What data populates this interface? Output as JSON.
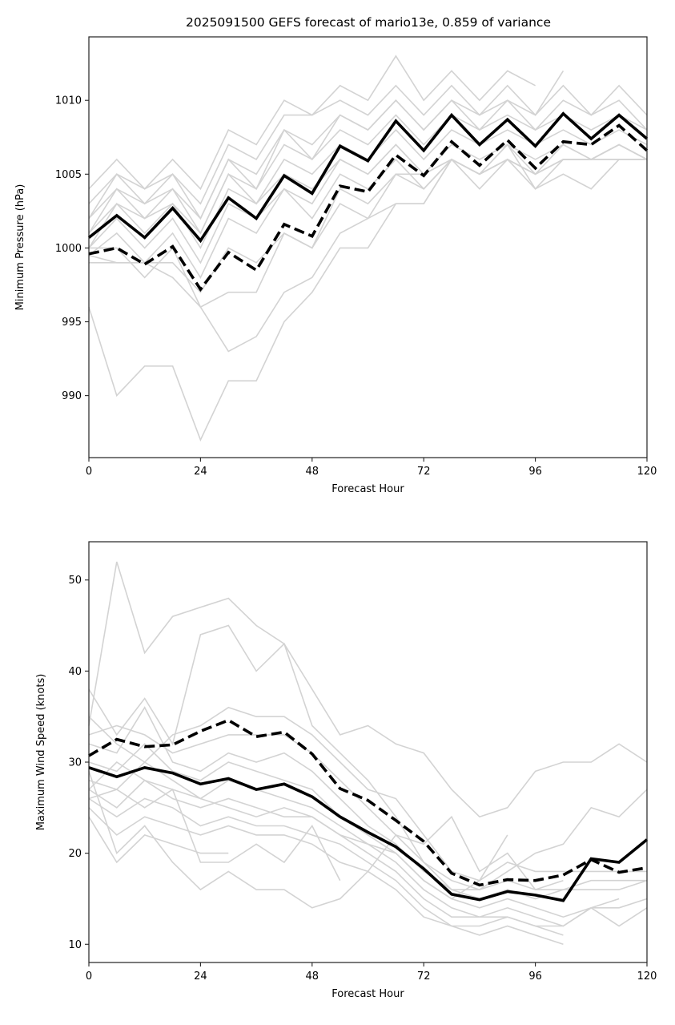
{
  "figure": {
    "title": "2025091500 GEFS forecast of mario13e, 0.859 of variance"
  },
  "colors": {
    "ensemble_member": "#d3d3d3",
    "highlight": "#000000"
  },
  "chart_data": [
    {
      "type": "line",
      "title": "2025091500 GEFS forecast of mario13e, 0.859 of variance",
      "xlabel": "Forecast Hour",
      "ylabel": "Minimum Pressure (hPa)",
      "xlim": [
        0,
        120
      ],
      "ylim": [
        985.8,
        1014.3
      ],
      "xticks": [
        0,
        24,
        48,
        72,
        96,
        120
      ],
      "yticks": [
        990,
        995,
        1000,
        1005,
        1010
      ],
      "grid": false,
      "legend": "none",
      "x": [
        0,
        6,
        12,
        18,
        24,
        30,
        36,
        42,
        48,
        54,
        60,
        66,
        72,
        78,
        84,
        90,
        96,
        102,
        108,
        114,
        120
      ],
      "series": [
        {
          "name": "solid-black",
          "style": "solid",
          "values": [
            1000.7,
            1002.2,
            1000.7,
            1002.7,
            1000.5,
            1003.4,
            1002.0,
            1004.9,
            1003.7,
            1006.9,
            1005.9,
            1008.6,
            1006.6,
            1009.0,
            1007.0,
            1008.7,
            1006.9,
            1009.1,
            1007.4,
            1009.0,
            1007.4
          ]
        },
        {
          "name": "dashed-black",
          "style": "dashed",
          "values": [
            999.6,
            1000.0,
            998.9,
            1000.1,
            997.2,
            999.7,
            998.5,
            1001.6,
            1000.8,
            1004.2,
            1003.8,
            1006.3,
            1004.9,
            1007.2,
            1005.6,
            1007.3,
            1005.4,
            1007.2,
            1007.0,
            1008.3,
            1006.6
          ]
        },
        {
          "name": "member-01",
          "style": "gray",
          "values": [
            1004,
            1006,
            1004,
            1006,
            1004,
            1008,
            1007,
            1010,
            1009,
            1011,
            1010,
            1013,
            1010,
            1012,
            1010,
            1012,
            1011,
            null,
            null,
            null,
            null
          ]
        },
        {
          "name": "member-02",
          "style": "gray",
          "values": [
            1003,
            1005,
            1004,
            1005,
            1003,
            1007,
            1006,
            1009,
            1009,
            1010,
            1009,
            1011,
            1009,
            1011,
            1009,
            1011,
            1009,
            1012,
            null,
            null,
            null
          ]
        },
        {
          "name": "member-03",
          "style": "gray",
          "values": [
            1002,
            1005,
            1003,
            1005,
            1002,
            1006,
            1005,
            1008,
            1007,
            1009,
            1008,
            1010,
            1008,
            1010,
            1009,
            1010,
            1009,
            1011,
            1009,
            1011,
            1009
          ]
        },
        {
          "name": "member-04",
          "style": "gray",
          "values": [
            1002,
            1004,
            1003,
            1004,
            1002,
            1006,
            1004,
            1008,
            1006,
            1009,
            1008,
            1010,
            1008,
            1010,
            1008,
            1010,
            1008,
            1010,
            1009,
            1010,
            1008
          ]
        },
        {
          "name": "member-05",
          "style": "gray",
          "values": [
            1001,
            1004,
            1002,
            1004,
            1001,
            1005,
            1004,
            1007,
            1006,
            1008,
            1007,
            1009,
            1007,
            1009,
            1008,
            1009,
            1008,
            1009,
            1008,
            1009,
            1008
          ]
        },
        {
          "name": "member-06",
          "style": "gray",
          "values": [
            1001,
            1003,
            1002,
            1003,
            1001,
            1005,
            1003,
            1006,
            1005,
            1007,
            1006,
            1008,
            1006,
            1008,
            1007,
            1008,
            1007,
            1008,
            1007,
            1008,
            1007
          ]
        },
        {
          "name": "member-07",
          "style": "gray",
          "values": [
            1000,
            1003,
            1001,
            1003,
            1000,
            1004,
            1003,
            1005,
            1004,
            1006,
            1005,
            1007,
            1005,
            1007,
            1006,
            1007,
            1006,
            1007,
            1006,
            1007,
            1006
          ]
        },
        {
          "name": "member-08",
          "style": "gray",
          "values": [
            1000,
            1002,
            1000,
            1002,
            999,
            1003,
            1002,
            1004,
            1003,
            1006,
            1005,
            1007,
            1005,
            1006,
            1005,
            1006,
            1005,
            1006,
            1006,
            1006,
            1006
          ]
        },
        {
          "name": "member-09",
          "style": "gray",
          "values": [
            999.5,
            1001,
            999,
            1001,
            998,
            1002,
            1001,
            1004,
            1002,
            1005,
            1004,
            1006,
            1004,
            1006,
            1004,
            1006,
            1004,
            1006,
            1006,
            1006,
            1006
          ]
        },
        {
          "name": "member-10",
          "style": "gray",
          "values": [
            999,
            999,
            999,
            999,
            997,
            1000,
            999,
            1001,
            1000,
            1003,
            1002,
            1005,
            1004,
            1006,
            1005,
            1006,
            1005,
            1007,
            1006,
            1007,
            1006
          ]
        },
        {
          "name": "member-11",
          "style": "gray",
          "values": [
            1000,
            1000,
            998,
            1000,
            996,
            997,
            997,
            1001,
            1000,
            1004,
            1003,
            1005,
            1005,
            1006,
            1005,
            1007,
            1004,
            1005,
            1004,
            1006,
            1006
          ]
        },
        {
          "name": "member-12",
          "style": "gray",
          "values": [
            999.5,
            999,
            999,
            998,
            996,
            993,
            994,
            997,
            998,
            1001,
            1002,
            1003,
            1003,
            1006,
            1005,
            1006,
            1005,
            1006,
            1006,
            1007,
            1006
          ]
        },
        {
          "name": "member-13",
          "style": "gray",
          "values": [
            996,
            990,
            992,
            992,
            987,
            991,
            991,
            995,
            997,
            1000,
            1000,
            1003,
            1003,
            1006,
            1005,
            1007,
            1005,
            1006,
            1006,
            1007,
            1006
          ]
        }
      ]
    },
    {
      "type": "line",
      "title": "",
      "xlabel": "Forecast Hour",
      "ylabel": "Maximum Wind Speed (knots)",
      "xlim": [
        0,
        120
      ],
      "ylim": [
        8,
        54.2
      ],
      "xticks": [
        0,
        24,
        48,
        72,
        96,
        120
      ],
      "yticks": [
        10,
        20,
        30,
        40,
        50
      ],
      "grid": false,
      "legend": "none",
      "x": [
        0,
        6,
        12,
        18,
        24,
        30,
        36,
        42,
        48,
        54,
        60,
        66,
        72,
        78,
        84,
        90,
        96,
        102,
        108,
        114,
        120
      ],
      "series": [
        {
          "name": "solid-black",
          "style": "solid",
          "values": [
            29.4,
            28.4,
            29.4,
            28.8,
            27.6,
            28.2,
            27.0,
            27.6,
            26.2,
            24.0,
            22.3,
            20.7,
            18.3,
            15.5,
            14.9,
            15.8,
            15.4,
            14.8,
            19.4,
            19.0,
            21.5
          ]
        },
        {
          "name": "dashed-black",
          "style": "dashed",
          "values": [
            30.7,
            32.5,
            31.7,
            31.9,
            33.4,
            34.6,
            32.8,
            33.3,
            30.9,
            27.1,
            25.8,
            23.6,
            21.3,
            17.8,
            16.5,
            17.1,
            17.0,
            17.6,
            19.3,
            17.9,
            18.4
          ]
        },
        {
          "name": "member-01",
          "style": "gray",
          "values": [
            34,
            52,
            42,
            46,
            47,
            48,
            45,
            43,
            38,
            33,
            34,
            32,
            31,
            27,
            24,
            25,
            29,
            30,
            30,
            32,
            30
          ]
        },
        {
          "name": "member-02",
          "style": "gray",
          "values": [
            38,
            33,
            37,
            32,
            44,
            45,
            40,
            43,
            34,
            31,
            28,
            24,
            19,
            16,
            16,
            18,
            20,
            21,
            25,
            24,
            27
          ]
        },
        {
          "name": "member-03",
          "style": "gray",
          "values": [
            35,
            32,
            30,
            33,
            34,
            36,
            35,
            35,
            33,
            30,
            27,
            26,
            22,
            18,
            17,
            19,
            18,
            18,
            18,
            18,
            18
          ]
        },
        {
          "name": "member-04",
          "style": "gray",
          "values": [
            33,
            34,
            33,
            31,
            32,
            33,
            33,
            33,
            31,
            28,
            25,
            22,
            19,
            17,
            16,
            17,
            16,
            16,
            17,
            17,
            17
          ]
        },
        {
          "name": "member-05",
          "style": "gray",
          "values": [
            32,
            31,
            36,
            30,
            29,
            31,
            30,
            31,
            29,
            26,
            23,
            21,
            18,
            16,
            15,
            16,
            15,
            16,
            16,
            16,
            17
          ]
        },
        {
          "name": "member-06",
          "style": "gray",
          "values": [
            30,
            29,
            32,
            29,
            28,
            30,
            29,
            28,
            27,
            24,
            22,
            20,
            17,
            15,
            14,
            15,
            14,
            13,
            14,
            15,
            null
          ]
        },
        {
          "name": "member-07",
          "style": "gray",
          "values": [
            28,
            27,
            30,
            28,
            26,
            28,
            27,
            26,
            25,
            23,
            21,
            19,
            16,
            14,
            13,
            14,
            13,
            12,
            14,
            14,
            15
          ]
        },
        {
          "name": "member-08",
          "style": "gray",
          "values": [
            27,
            25,
            28,
            26,
            25,
            26,
            25,
            24,
            24,
            22,
            20,
            18,
            15,
            13,
            13,
            13,
            12,
            12,
            14,
            12,
            14
          ]
        },
        {
          "name": "member-09",
          "style": "gray",
          "values": [
            26,
            24,
            26,
            25,
            23,
            24,
            23,
            23,
            22,
            21,
            19,
            17,
            14,
            12,
            12,
            13,
            12,
            11,
            null,
            null,
            null
          ]
        },
        {
          "name": "member-10",
          "style": "gray",
          "values": [
            25,
            22,
            24,
            23,
            22,
            23,
            22,
            22,
            21,
            19,
            18,
            16,
            13,
            12,
            11,
            12,
            11,
            10,
            null,
            null,
            null
          ]
        },
        {
          "name": "member-11",
          "style": "gray",
          "values": [
            24,
            19,
            22,
            21,
            20,
            20,
            null,
            null,
            null,
            null,
            null,
            null,
            null,
            null,
            null,
            null,
            null,
            null,
            null,
            null,
            null
          ]
        },
        {
          "name": "member-12",
          "style": "gray",
          "values": [
            29,
            20,
            23,
            19,
            16,
            18,
            16,
            16,
            14,
            15,
            18,
            22,
            21,
            24,
            18,
            20,
            16,
            17,
            null,
            null,
            null
          ]
        },
        {
          "name": "member-13",
          "style": "gray",
          "values": [
            26,
            27,
            25,
            27,
            19,
            19,
            21,
            19,
            23,
            17,
            null,
            null,
            null,
            null,
            null,
            null,
            null,
            null,
            null,
            null,
            null
          ]
        },
        {
          "name": "member-14",
          "style": "gray",
          "values": [
            27,
            30,
            28,
            27,
            26,
            25,
            24,
            25,
            24,
            22,
            21,
            20,
            17,
            15,
            17,
            22,
            null,
            null,
            null,
            null,
            null
          ]
        }
      ]
    }
  ]
}
